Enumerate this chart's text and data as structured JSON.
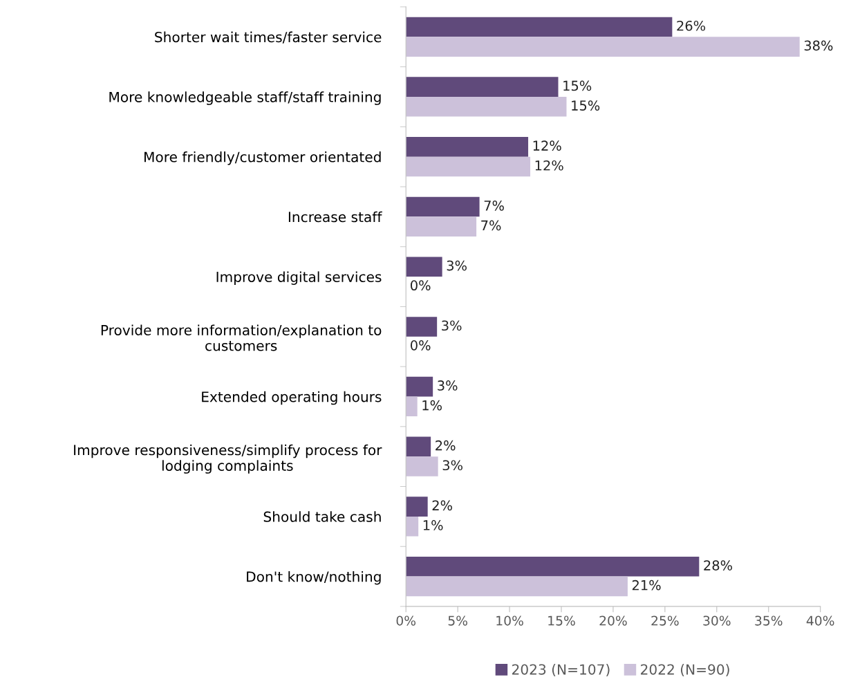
{
  "chart_data": {
    "type": "bar",
    "orientation": "horizontal",
    "categories": [
      "Shorter wait times/faster service",
      "More knowledgeable staff/staff training",
      "More friendly/customer orientated",
      "Increase staff",
      "Improve digital services",
      "Provide more information/explanation to\ncustomers",
      "Extended operating hours",
      "Improve responsiveness/simplify process for\nlodging complaints",
      "Should take cash",
      "Don't know/nothing"
    ],
    "series": [
      {
        "name": "2023 (N=107)",
        "color": "#604a7b",
        "values": [
          25.7,
          14.7,
          11.8,
          7.1,
          3.5,
          3.0,
          2.6,
          2.4,
          2.1,
          28.3
        ],
        "value_labels": [
          "26%",
          "15%",
          "12%",
          "7%",
          "3%",
          "3%",
          "3%",
          "2%",
          "2%",
          "28%"
        ]
      },
      {
        "name": "2022 (N=90)",
        "color": "#ccc1da",
        "values": [
          38.0,
          15.5,
          12.0,
          6.8,
          0,
          0,
          1.1,
          3.1,
          1.2,
          21.4
        ],
        "value_labels": [
          "38%",
          "15%",
          "12%",
          "7%",
          "0%",
          "0%",
          "1%",
          "3%",
          "1%",
          "21%"
        ]
      }
    ],
    "xlim": [
      0,
      40
    ],
    "xticks": [
      {
        "value": 0,
        "label": "0%"
      },
      {
        "value": 5,
        "label": "5%"
      },
      {
        "value": 10,
        "label": "10%"
      },
      {
        "value": 15,
        "label": "15%"
      },
      {
        "value": 20,
        "label": "20%"
      },
      {
        "value": 25,
        "label": "25%"
      },
      {
        "value": 30,
        "label": "30%"
      },
      {
        "value": 35,
        "label": "35%"
      },
      {
        "value": 40,
        "label": "40%"
      }
    ],
    "grid": false,
    "legend": "bottom"
  }
}
